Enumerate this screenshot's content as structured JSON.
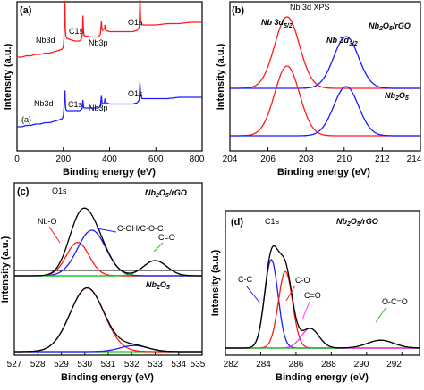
{
  "colors": {
    "red": "#ff1a1a",
    "blue": "#1a1aff",
    "black": "#000000",
    "green": "#19c819",
    "magenta": "#ff33ff"
  },
  "chart_data": [
    {
      "type": "line",
      "panel": "(a)",
      "xlabel": "Binding energy (eV)",
      "ylabel": "Intensity (a.u.)",
      "xlim": [
        0,
        800
      ],
      "x_ticks": [
        "0",
        "200",
        "400",
        "600",
        "800"
      ],
      "annotations": [
        {
          "text": "(a)",
          "series": "lower"
        },
        {
          "text": "Nb3d",
          "x": 207
        },
        {
          "text": "C1s",
          "x": 285
        },
        {
          "text": "Nb3p",
          "x": 365
        },
        {
          "text": "O1s",
          "x": 531
        },
        {
          "text": "Nb3d",
          "x": 207,
          "series": "lower"
        },
        {
          "text": "C1s",
          "x": 285,
          "series": "lower"
        },
        {
          "text": "Nb3p",
          "x": 365,
          "series": "lower"
        },
        {
          "text": "O1s",
          "x": 531,
          "series": "lower"
        }
      ],
      "series": [
        {
          "color": "red",
          "offset": 0.45,
          "points": [
            [
              0,
              0.52
            ],
            [
              20,
              0.52
            ],
            [
              40,
              0.53
            ],
            [
              60,
              0.53
            ],
            [
              80,
              0.54
            ],
            [
              100,
              0.54
            ],
            [
              120,
              0.55
            ],
            [
              140,
              0.55
            ],
            [
              160,
              0.56
            ],
            [
              180,
              0.57
            ],
            [
              195,
              0.58
            ],
            [
              200,
              0.6
            ],
            [
              203,
              0.66
            ],
            [
              205,
              0.88
            ],
            [
              207,
              0.94
            ],
            [
              209,
              0.72
            ],
            [
              211,
              0.68
            ],
            [
              216,
              0.66
            ],
            [
              230,
              0.65
            ],
            [
              250,
              0.64
            ],
            [
              270,
              0.64
            ],
            [
              280,
              0.66
            ],
            [
              283,
              0.7
            ],
            [
              285,
              0.83
            ],
            [
              287,
              0.72
            ],
            [
              290,
              0.68
            ],
            [
              320,
              0.67
            ],
            [
              350,
              0.67
            ],
            [
              360,
              0.69
            ],
            [
              363,
              0.75
            ],
            [
              365,
              0.79
            ],
            [
              367,
              0.73
            ],
            [
              370,
              0.72
            ],
            [
              378,
              0.73
            ],
            [
              380,
              0.76
            ],
            [
              383,
              0.72
            ],
            [
              400,
              0.71
            ],
            [
              450,
              0.71
            ],
            [
              500,
              0.71
            ],
            [
              520,
              0.72
            ],
            [
              528,
              0.74
            ],
            [
              531,
              0.98
            ],
            [
              534,
              0.8
            ],
            [
              540,
              0.76
            ],
            [
              560,
              0.76
            ],
            [
              600,
              0.76
            ],
            [
              650,
              0.77
            ],
            [
              700,
              0.77
            ],
            [
              750,
              0.78
            ],
            [
              800,
              0.78
            ]
          ]
        },
        {
          "color": "blue",
          "offset": 0.0,
          "points": [
            [
              0,
              0.0
            ],
            [
              20,
              0.0
            ],
            [
              40,
              0.01
            ],
            [
              60,
              0.01
            ],
            [
              80,
              0.02
            ],
            [
              100,
              0.02
            ],
            [
              120,
              0.03
            ],
            [
              140,
              0.03
            ],
            [
              160,
              0.04
            ],
            [
              180,
              0.05
            ],
            [
              195,
              0.06
            ],
            [
              200,
              0.08
            ],
            [
              203,
              0.14
            ],
            [
              205,
              0.25
            ],
            [
              207,
              0.27
            ],
            [
              209,
              0.17
            ],
            [
              211,
              0.13
            ],
            [
              216,
              0.12
            ],
            [
              230,
              0.12
            ],
            [
              250,
              0.12
            ],
            [
              270,
              0.12
            ],
            [
              280,
              0.13
            ],
            [
              283,
              0.15
            ],
            [
              285,
              0.2
            ],
            [
              287,
              0.15
            ],
            [
              290,
              0.14
            ],
            [
              320,
              0.14
            ],
            [
              350,
              0.14
            ],
            [
              360,
              0.15
            ],
            [
              363,
              0.2
            ],
            [
              365,
              0.23
            ],
            [
              367,
              0.18
            ],
            [
              370,
              0.17
            ],
            [
              378,
              0.18
            ],
            [
              380,
              0.21
            ],
            [
              383,
              0.18
            ],
            [
              400,
              0.17
            ],
            [
              450,
              0.17
            ],
            [
              500,
              0.17
            ],
            [
              520,
              0.18
            ],
            [
              528,
              0.2
            ],
            [
              531,
              0.33
            ],
            [
              534,
              0.24
            ],
            [
              540,
              0.21
            ],
            [
              560,
              0.21
            ],
            [
              600,
              0.21
            ],
            [
              650,
              0.21
            ],
            [
              700,
              0.22
            ],
            [
              750,
              0.22
            ],
            [
              800,
              0.22
            ]
          ]
        }
      ]
    },
    {
      "type": "line",
      "panel": "(b)",
      "title": "Nb 3d XPS",
      "xlabel": "Binding energy (eV)",
      "ylabel": "Intensity (a.u.)",
      "xlim": [
        204,
        214
      ],
      "x_ticks": [
        "204",
        "206",
        "208",
        "210",
        "212",
        "214"
      ],
      "annotations": [
        {
          "text": "Nb 3d 5/2",
          "main": "Nb 3d",
          "sub": "5/2"
        },
        {
          "text": "Nb 3d 3/2",
          "main": "Nb 3d",
          "sub": "3/2"
        },
        {
          "text": "Nb2O5/rGO",
          "main": [
            "Nb",
            "2",
            "O",
            "5",
            "/rGO"
          ]
        },
        {
          "text": "Nb2O5",
          "main": [
            "Nb",
            "2",
            "O",
            "5",
            ""
          ]
        }
      ],
      "peaks": [
        {
          "color": "red",
          "center": 207.0,
          "sigma": 0.65,
          "height": 0.8,
          "offset": 0.53
        },
        {
          "color": "blue",
          "center": 210.1,
          "sigma": 0.65,
          "height": 0.58,
          "offset": 0.53
        },
        {
          "color": "red",
          "center": 207.0,
          "sigma": 0.65,
          "height": 0.78,
          "offset": 0.0
        },
        {
          "color": "blue",
          "center": 210.1,
          "sigma": 0.65,
          "height": 0.55,
          "offset": 0.0
        }
      ]
    },
    {
      "type": "line",
      "panel": "(c)",
      "title": "O1s",
      "xlabel": "Binding energy (eV)",
      "ylabel": "Intensity (a.u.)",
      "xlim": [
        527,
        535
      ],
      "x_ticks": [
        "527",
        "528",
        "529",
        "530",
        "531",
        "532",
        "533",
        "534",
        "535"
      ],
      "annotations": [
        {
          "text": "Nb2O5/rGO",
          "main": [
            "Nb",
            "2",
            "O",
            "5",
            "/rGO"
          ]
        },
        {
          "text": "Nb-O"
        },
        {
          "text": "C-OH/C-O-C"
        },
        {
          "text": "C=O"
        },
        {
          "text": "Nb2O5",
          "main": [
            "Nb",
            "2",
            "O",
            "5",
            ""
          ]
        }
      ],
      "groups": [
        {
          "offset": 0.5,
          "baseline": "green",
          "envelope": "black",
          "peaks": [
            {
              "color": "red",
              "center": 529.7,
              "sigma": 0.48,
              "height": 0.22
            },
            {
              "color": "blue",
              "center": 530.3,
              "sigma": 0.6,
              "height": 0.3
            },
            {
              "color": "green",
              "center": 533.0,
              "sigma": 0.5,
              "height": 0.1
            }
          ]
        },
        {
          "offset": 0.0,
          "baseline": "green",
          "envelope": "black",
          "peaks": [
            {
              "color": "red",
              "center": 530.1,
              "sigma": 0.72,
              "height": 0.42
            },
            {
              "color": "blue",
              "center": 532.1,
              "sigma": 0.6,
              "height": 0.04
            }
          ]
        }
      ]
    },
    {
      "type": "line",
      "panel": "(d)",
      "title": "C1s",
      "xlabel": "Binding energy (eV)",
      "ylabel": "Intensity (a.u.)",
      "xlim": [
        282,
        293
      ],
      "x_ticks": [
        "282",
        "284",
        "286",
        "288",
        "290",
        "292"
      ],
      "annotations": [
        {
          "text": "Nb2O5/rGO",
          "main": [
            "Nb",
            "2",
            "O",
            "5",
            "/rGO"
          ]
        },
        {
          "text": "C-C"
        },
        {
          "text": "C-O"
        },
        {
          "text": "C=O"
        },
        {
          "text": "O-C=O"
        }
      ],
      "groups": [
        {
          "offset": 0.0,
          "baseline": "green",
          "envelope": "black",
          "peaks": [
            {
              "color": "blue",
              "center": 284.6,
              "sigma": 0.38,
              "height": 0.45
            },
            {
              "color": "red",
              "center": 285.4,
              "sigma": 0.4,
              "height": 0.39
            },
            {
              "color": "magenta",
              "center": 286.8,
              "sigma": 0.5,
              "height": 0.1
            },
            {
              "color": "green",
              "center": 290.8,
              "sigma": 0.75,
              "height": 0.04
            }
          ]
        }
      ]
    }
  ]
}
